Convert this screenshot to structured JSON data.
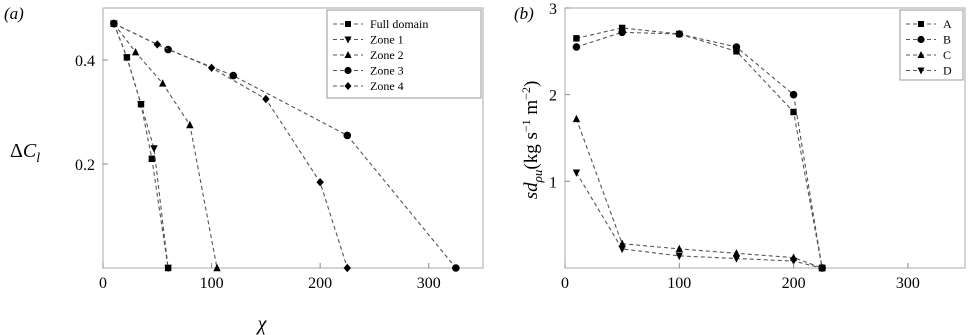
{
  "chart_data": [
    {
      "panel": "(a)",
      "type": "line",
      "ylabel": "ΔC_l",
      "xlabel": "χ",
      "xlim": [
        0,
        350
      ],
      "ylim": [
        0,
        0.5
      ],
      "xticks": [
        0,
        100,
        200,
        300
      ],
      "yticks": [
        0.2,
        0.4
      ],
      "tick_labels_x": [
        "0",
        "100",
        "200",
        "300"
      ],
      "tick_labels_y": [
        "0.2",
        "0.4"
      ],
      "grid": false,
      "legend": "top-right",
      "series": [
        {
          "name": "Full domain",
          "marker": "square",
          "x": [
            10,
            22,
            35,
            45,
            60
          ],
          "y": [
            0.47,
            0.405,
            0.315,
            0.21,
            0.0
          ]
        },
        {
          "name": "Zone 1",
          "marker": "triangle-down",
          "x": [
            10,
            22,
            35,
            47,
            60
          ],
          "y": [
            0.47,
            0.405,
            0.315,
            0.23,
            0.0
          ]
        },
        {
          "name": "Zone 2",
          "marker": "triangle-up",
          "x": [
            10,
            30,
            55,
            80,
            105
          ],
          "y": [
            0.47,
            0.415,
            0.355,
            0.275,
            0.0
          ]
        },
        {
          "name": "Zone 3",
          "marker": "circle",
          "x": [
            10,
            60,
            120,
            225,
            325
          ],
          "y": [
            0.47,
            0.42,
            0.37,
            0.255,
            0.0
          ]
        },
        {
          "name": "Zone 4",
          "marker": "diamond",
          "x": [
            10,
            50,
            100,
            150,
            200,
            225
          ],
          "y": [
            0.47,
            0.43,
            0.385,
            0.325,
            0.165,
            0.0
          ]
        }
      ]
    },
    {
      "panel": "(b)",
      "type": "line",
      "ylabel_main": "sd",
      "ylabel_sub": "ρu",
      "ylabel_unit": "(kg s",
      "ylabel_exp1": "−1",
      "ylabel_mid": " m",
      "ylabel_exp2": "−2",
      "ylabel_close": ")",
      "xlim": [
        0,
        350
      ],
      "ylim": [
        0,
        3
      ],
      "xticks": [
        0,
        100,
        200,
        300
      ],
      "yticks": [
        1,
        2,
        3
      ],
      "tick_labels_x": [
        "0",
        "100",
        "200",
        "300"
      ],
      "tick_labels_y": [
        "1",
        "2",
        "3"
      ],
      "grid": false,
      "legend": "top-right",
      "series": [
        {
          "name": "A",
          "marker": "square",
          "x": [
            10,
            50,
            100,
            150,
            200,
            225
          ],
          "y": [
            2.65,
            2.77,
            2.7,
            2.5,
            1.8,
            0.0
          ]
        },
        {
          "name": "B",
          "marker": "circle",
          "x": [
            10,
            50,
            100,
            150,
            200,
            225
          ],
          "y": [
            2.55,
            2.72,
            2.7,
            2.55,
            2.0,
            0.0
          ]
        },
        {
          "name": "C",
          "marker": "triangle-up",
          "x": [
            10,
            50,
            100,
            150,
            200,
            225
          ],
          "y": [
            1.72,
            0.28,
            0.22,
            0.17,
            0.12,
            0.0
          ]
        },
        {
          "name": "D",
          "marker": "triangle-down",
          "x": [
            10,
            50,
            100,
            150,
            200,
            225
          ],
          "y": [
            1.1,
            0.22,
            0.14,
            0.11,
            0.08,
            0.0
          ]
        }
      ]
    }
  ]
}
